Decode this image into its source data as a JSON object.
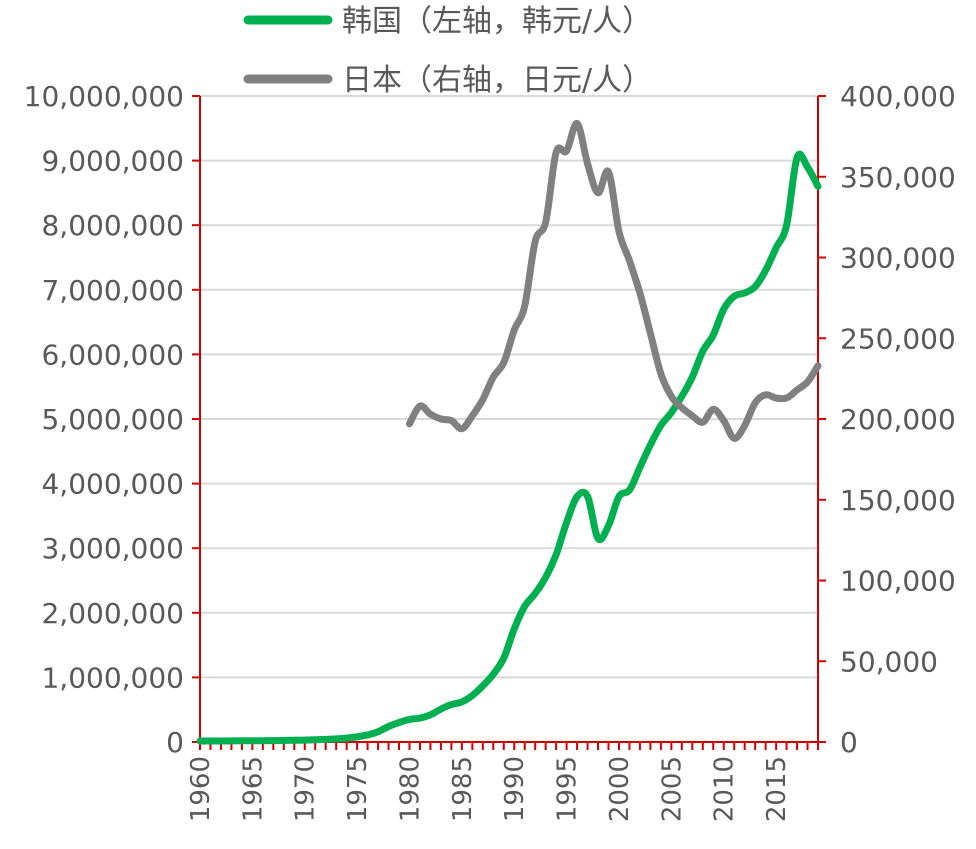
{
  "chart_data": {
    "type": "line",
    "title": "",
    "xlabel": "",
    "ylabel_left": "",
    "ylabel_right": "",
    "x_ticks": [
      "1960",
      "1965",
      "1970",
      "1975",
      "1980",
      "1985",
      "1990",
      "1995",
      "2000",
      "2005",
      "2010",
      "2015"
    ],
    "xlim": [
      1960,
      2019
    ],
    "ylim_left": [
      0,
      10000000
    ],
    "ylim_right": [
      0,
      400000
    ],
    "y_left_ticks": [
      "0",
      "1,000,000",
      "2,000,000",
      "3,000,000",
      "4,000,000",
      "5,000,000",
      "6,000,000",
      "7,000,000",
      "8,000,000",
      "9,000,000",
      "10,000,000"
    ],
    "y_right_ticks": [
      "0",
      "50,000",
      "100,000",
      "150,000",
      "200,000",
      "250,000",
      "300,000",
      "350,000",
      "400,000"
    ],
    "legend": [
      "韩国（左轴，韩元/人）",
      "日本（右轴，日元/人）"
    ],
    "series": [
      {
        "name": "韩国（左轴，韩元/人）",
        "axis": "left",
        "color": "#00b050",
        "x": [
          1960,
          1962,
          1964,
          1966,
          1968,
          1970,
          1972,
          1974,
          1976,
          1977,
          1978,
          1979,
          1980,
          1981,
          1982,
          1983,
          1984,
          1985,
          1986,
          1987,
          1988,
          1989,
          1990,
          1991,
          1992,
          1993,
          1994,
          1995,
          1996,
          1997,
          1998,
          1999,
          2000,
          2001,
          2002,
          2003,
          2004,
          2005,
          2006,
          2007,
          2008,
          2009,
          2010,
          2011,
          2012,
          2013,
          2014,
          2015,
          2016,
          2017,
          2018,
          2019
        ],
        "values": [
          15000,
          16000,
          18000,
          20000,
          24000,
          30000,
          40000,
          60000,
          110000,
          160000,
          240000,
          300000,
          350000,
          370000,
          420000,
          510000,
          580000,
          620000,
          720000,
          870000,
          1050000,
          1300000,
          1750000,
          2100000,
          2300000,
          2550000,
          2900000,
          3400000,
          3800000,
          3800000,
          3150000,
          3350000,
          3800000,
          3900000,
          4250000,
          4600000,
          4900000,
          5100000,
          5350000,
          5650000,
          6050000,
          6300000,
          6700000,
          6900000,
          6950000,
          7050000,
          7300000,
          7650000,
          8000000,
          9050000,
          8900000,
          8600000
        ]
      },
      {
        "name": "日本（右轴，日元/人）",
        "axis": "right",
        "color": "#808080",
        "x": [
          1980,
          1981,
          1982,
          1983,
          1984,
          1985,
          1986,
          1987,
          1988,
          1989,
          1990,
          1991,
          1992,
          1993,
          1994,
          1995,
          1996,
          1997,
          1998,
          1999,
          2000,
          2001,
          2002,
          2003,
          2004,
          2005,
          2006,
          2007,
          2008,
          2009,
          2010,
          2011,
          2012,
          2013,
          2014,
          2015,
          2016,
          2017,
          2018,
          2019
        ],
        "values": [
          197000,
          208000,
          203000,
          200000,
          199000,
          194000,
          202000,
          212000,
          226000,
          235000,
          255000,
          270000,
          310000,
          322000,
          365000,
          366000,
          383000,
          358000,
          340000,
          353000,
          316000,
          298000,
          278000,
          253000,
          228000,
          214000,
          207000,
          202000,
          198000,
          206000,
          199000,
          188000,
          196000,
          210000,
          215000,
          213000,
          213000,
          218000,
          223000,
          233000
        ]
      }
    ]
  }
}
